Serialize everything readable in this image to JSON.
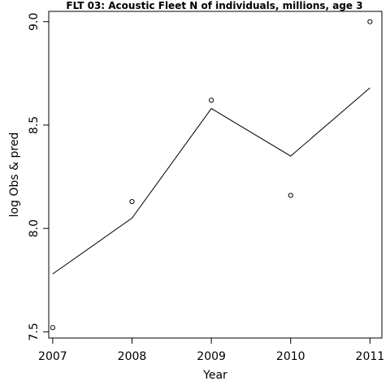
{
  "chart_data": {
    "type": "scatter",
    "title": "FLT 03: Acoustic Fleet  N of individuals, millions, age 3",
    "xlabel": "Year",
    "ylabel": "log Obs & pred",
    "x": [
      2007,
      2008,
      2009,
      2010,
      2011
    ],
    "xticks": [
      "2007",
      "2008",
      "2009",
      "2010",
      "2011"
    ],
    "yticks": [
      "7.5",
      "8.0",
      "8.5",
      "9.0"
    ],
    "xlim": [
      2006.95,
      2011.15
    ],
    "ylim": [
      7.47,
      9.05
    ],
    "series": [
      {
        "values": [
          7.52,
          8.13,
          8.62,
          8.16,
          9.0
        ],
        "style": "points"
      },
      {
        "values": [
          7.78,
          8.05,
          8.58,
          8.35,
          8.68
        ],
        "style": "line"
      }
    ],
    "grid": false,
    "legend": "none",
    "colors": {
      "points": "#000000",
      "line": "#000000",
      "axes": "#000000"
    }
  }
}
